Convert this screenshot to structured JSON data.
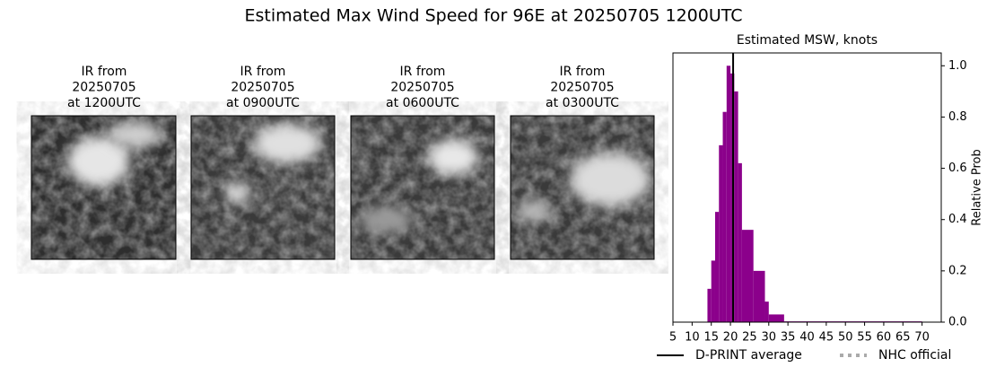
{
  "title": "Estimated Max Wind Speed for 96E at 20250705 1200UTC",
  "panels": [
    {
      "title_lines": [
        "IR from",
        "20250705",
        "at 1200UTC"
      ]
    },
    {
      "title_lines": [
        "IR from",
        "20250705",
        "at 0900UTC"
      ]
    },
    {
      "title_lines": [
        "IR from",
        "20250705",
        "at 0600UTC"
      ]
    },
    {
      "title_lines": [
        "IR from",
        "20250705",
        "at 0300UTC"
      ]
    }
  ],
  "chart_data": {
    "type": "histogram",
    "title": "Estimated MSW, knots",
    "y_label": "Relative Prob",
    "bins": [
      14,
      15,
      16,
      17,
      18,
      19,
      20,
      21,
      22,
      23,
      26,
      29,
      30,
      34,
      70
    ],
    "values": [
      0.13,
      0.24,
      0.43,
      0.69,
      0.82,
      1.0,
      0.97,
      0.9,
      0.62,
      0.36,
      0.2,
      0.08,
      0.03,
      0.003
    ],
    "color": "#8b008b",
    "xlim": [
      5,
      75
    ],
    "ylim": [
      0,
      1.05
    ],
    "xticks": [
      5,
      10,
      15,
      20,
      25,
      30,
      35,
      40,
      45,
      50,
      55,
      60,
      65,
      70
    ],
    "yticks": [
      {
        "value": 0,
        "label": "0.0"
      },
      0.2,
      0.4,
      0.6,
      0.8,
      {
        "value": 1,
        "label": "1.0"
      }
    ],
    "y_axis_side": "right",
    "lines": [
      {
        "name": "D-PRINT average",
        "x": 20.7,
        "color": "#000000",
        "style": "solid"
      },
      {
        "name": "NHC official",
        "color": "#aaaaaa",
        "style": "dotted"
      }
    ]
  }
}
